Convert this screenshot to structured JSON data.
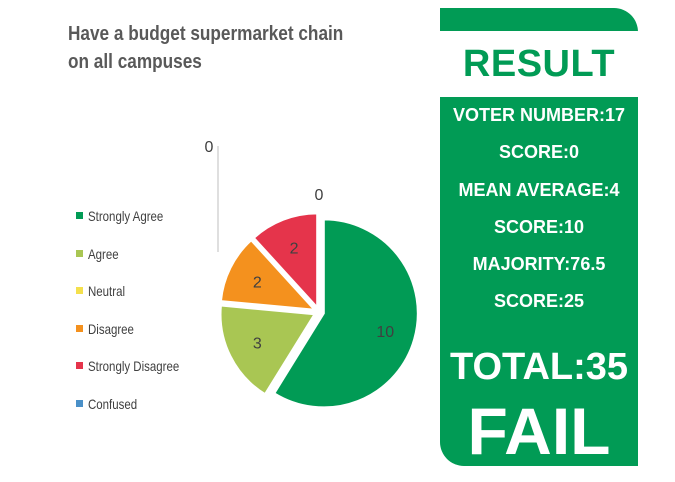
{
  "chart_data": {
    "type": "pie",
    "title": "Have a budget supermarket chain on all campuses",
    "categories": [
      "Strongly Agree",
      "Agree",
      "Neutral",
      "Disagree",
      "Strongly Disagree",
      "Confused"
    ],
    "values": [
      10,
      3,
      0,
      2,
      2,
      0
    ],
    "colors": [
      "#019b55",
      "#a9c653",
      "#f4e04d",
      "#f4911e",
      "#e5344b",
      "#4a90c8"
    ],
    "legend_position": "left",
    "exploded": true
  },
  "result": {
    "title": "RESULT",
    "stats": [
      "VOTER NUMBER:17",
      "SCORE:0",
      "MEAN AVERAGE:4",
      "SCORE:10",
      "MAJORITY:76.5",
      "SCORE:25"
    ],
    "total": "TOTAL:35",
    "verdict": "FAIL",
    "panel_color": "#019b55"
  }
}
